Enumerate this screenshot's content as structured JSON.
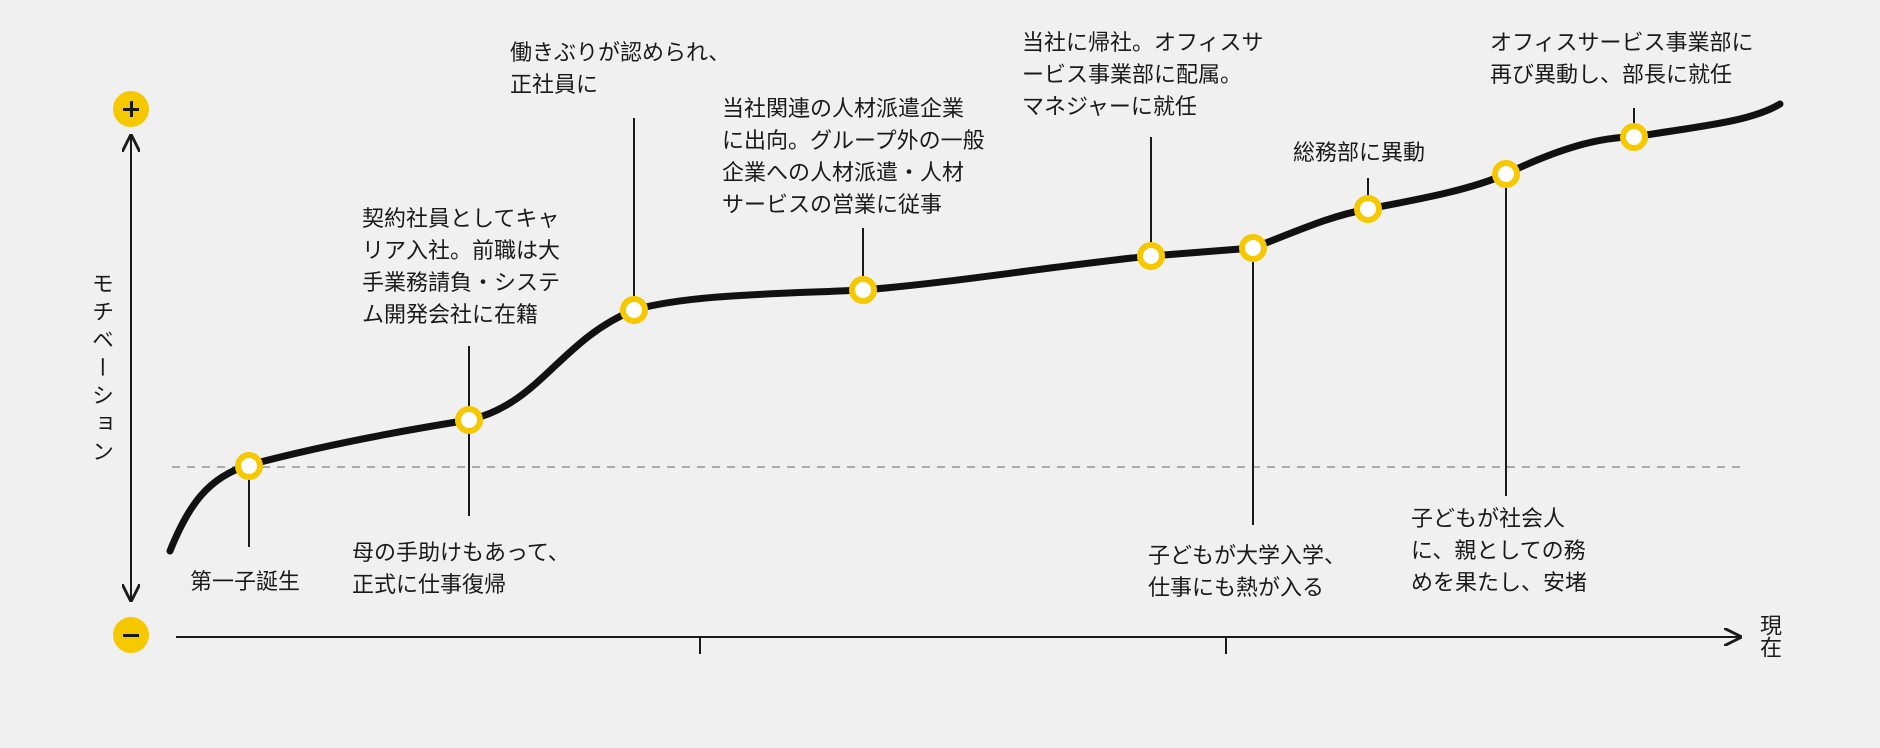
{
  "colors": {
    "accent": "#f5c800",
    "line": "#111111",
    "background": "#f0f0f0",
    "neutral_line": "#aaaaaa"
  },
  "chart_data": {
    "type": "line",
    "ylabel": "モチベーション",
    "xlabel": "",
    "x_end_label": "現在",
    "y_top_icon": "plus-icon",
    "y_bottom_icon": "minus-icon",
    "grid": false,
    "neutral_baseline": true,
    "events": [
      {
        "label": "第一子誕生"
      },
      {
        "label": "契約社員としてキャリア入社。前職は大手業務請負・システム開発会社に在籍\n母の手助けもあって、正式に仕事復帰"
      },
      {
        "label": "働きぶりが認められ、正社員に"
      },
      {
        "label": "当社関連の人材派遣企業に出向。グループ外の一般企業への人材派遣・人材サービスの営業に従事"
      },
      {
        "label": "当社に帰社。オフィスサービス事業部に配属。マネジャーに就任"
      },
      {
        "label": "子どもが大学入学、仕事にも熱が入る"
      },
      {
        "label": "総務部に異動"
      },
      {
        "label": "子どもが社会人に、親としての務めを果たし、安堵"
      },
      {
        "label": "オフィスサービス事業部に再び異動し、部長に就任"
      }
    ],
    "annotations": {
      "a1": "第一子誕生",
      "a2": "契約社員としてキャ\nリア入社。前職は大\n手業務請負・システ\nム開発会社に在籍",
      "a3": "母の手助けもあって、\n正式に仕事復帰",
      "a4": "働きぶりが認められ、\n正社員に",
      "a5": "当社関連の人材派遣企業\nに出向。グループ外の一般\n企業への人材派遣・人材\nサービスの営業に従事",
      "a6": "当社に帰社。オフィスサ\nービス事業部に配属。\nマネジャーに就任",
      "a7": "子どもが大学入学、\n仕事にも熱が入る",
      "a8": "総務部に異動",
      "a9": "子どもが社会人\nに、親としての務\nめを果たし、安堵",
      "a10": "オフィスサービス事業部に\n再び異動し、部長に就任"
    }
  }
}
